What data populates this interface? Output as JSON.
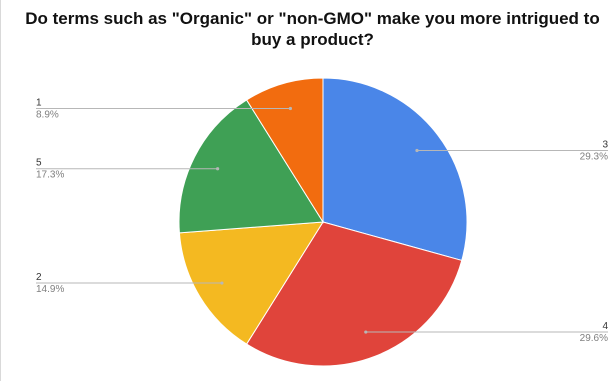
{
  "chart_data": {
    "type": "pie",
    "title": "Do terms such as \"Organic\" or \"non-GMO\" make you more intrigued to buy a product?",
    "start_angle": "12 o'clock",
    "direction": "clockwise",
    "slices": [
      {
        "label": "3",
        "value": 29.3,
        "percent_text": "29.3%",
        "color": "#4a86e8",
        "label_side": "right"
      },
      {
        "label": "4",
        "value": 29.6,
        "percent_text": "29.6%",
        "color": "#e0443b",
        "label_side": "right"
      },
      {
        "label": "2",
        "value": 14.9,
        "percent_text": "14.9%",
        "color": "#f4b921",
        "label_side": "left"
      },
      {
        "label": "5",
        "value": 17.3,
        "percent_text": "17.3%",
        "color": "#3fa055",
        "label_side": "left"
      },
      {
        "label": "1",
        "value": 8.9,
        "percent_text": "8.9%",
        "color": "#f26c0f",
        "label_side": "left"
      }
    ],
    "leader_line_color": "#b7b7b7"
  }
}
